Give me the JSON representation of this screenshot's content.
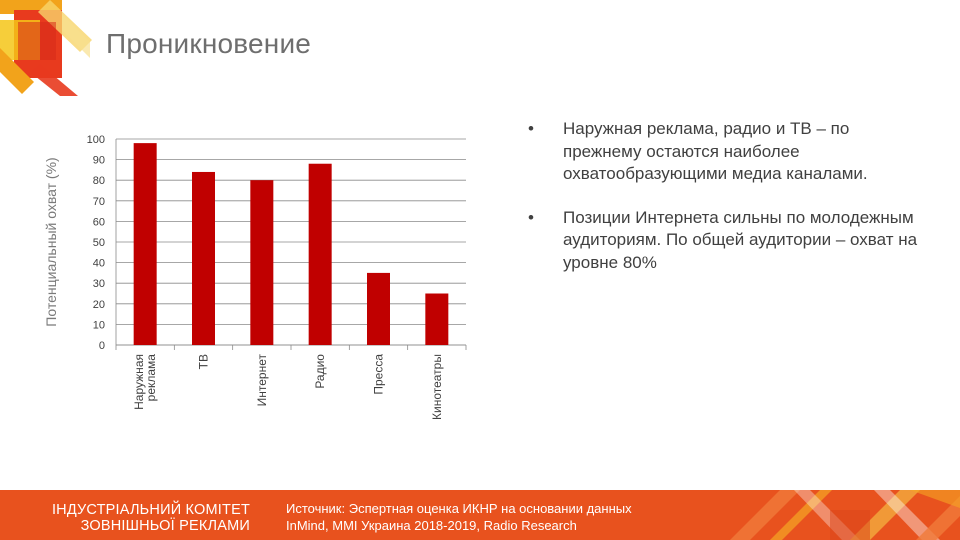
{
  "slide": {
    "title": "Проникновение"
  },
  "chart_data": {
    "type": "bar",
    "categories": [
      "Наружная реклама",
      "ТВ",
      "Интернет",
      "Радио",
      "Пресса",
      "Кинотеатры"
    ],
    "category_lines": [
      [
        "Наружная",
        "реклама"
      ],
      [
        "ТВ"
      ],
      [
        "Интернет"
      ],
      [
        "Радио"
      ],
      [
        "Пресса"
      ],
      [
        "Кинотеатры"
      ]
    ],
    "values": [
      98,
      84,
      80,
      88,
      35,
      25
    ],
    "title": "",
    "xlabel": "",
    "ylabel": "Потенциальный  охват (%)",
    "ylim": [
      0,
      100
    ],
    "yticks": [
      "0",
      "10",
      "20",
      "30",
      "40",
      "50",
      "60",
      "70",
      "80",
      "90",
      "100"
    ],
    "grid": true,
    "bar_color": "#c00000"
  },
  "bullets": {
    "symbol": "•",
    "items": [
      "Наружная реклама, радио и ТВ – по прежнему остаются наиболее охватообразующими медиа каналами.",
      "Позиции Интернета сильны по молодежным аудиториям. По общей аудитории – охват на уровне 80%"
    ]
  },
  "footer": {
    "org_line1": "ІНДУСТРІАЛЬНИЙ КОМІТЕТ",
    "org_line2": "ЗОВНІШНЬОЇ РЕКЛАМИ",
    "source_line1": "Источник: Эспертная оценка ИКНР на основании данных",
    "source_line2": "InMind, MMI Украина 2018-2019, Radio Research",
    "bg_color": "#e8521e"
  }
}
